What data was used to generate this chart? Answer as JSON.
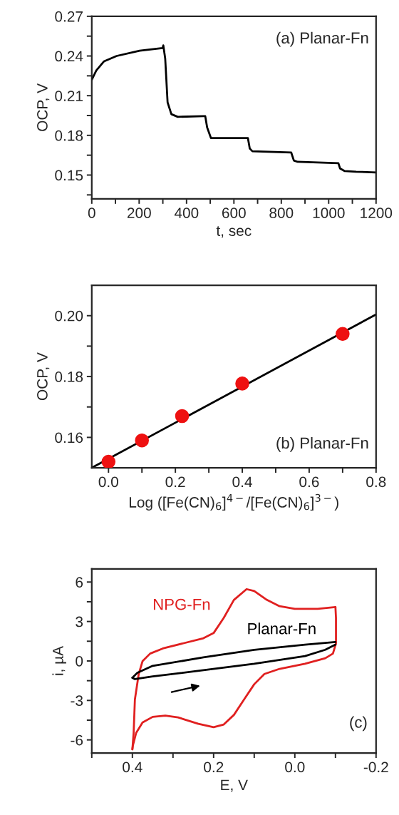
{
  "chart_data": [
    {
      "type": "line",
      "xlabel": "t, sec",
      "ylabel": "OCP, V",
      "annotations": [
        "(a) Planar-Fn"
      ],
      "xlim": [
        0,
        1200
      ],
      "ylim": [
        0.132,
        0.27
      ],
      "xticks": [
        0,
        {
          "value": 100,
          "label": null
        },
        200,
        {
          "value": 300,
          "label": null
        },
        400,
        {
          "value": 500,
          "label": null
        },
        600,
        {
          "value": 700,
          "label": null
        },
        800,
        {
          "value": 900,
          "label": null
        },
        1000,
        {
          "value": 1100,
          "label": null
        },
        1200
      ],
      "yticks": [
        {
          "value": 0.135,
          "label": null
        },
        0.15,
        {
          "value": 0.165,
          "label": null
        },
        0.18,
        {
          "value": 0.195,
          "label": null
        },
        0.21,
        {
          "value": 0.225,
          "label": null
        },
        0.24,
        {
          "value": 0.255,
          "label": null
        },
        0.27
      ],
      "series": [
        {
          "color": "#000000",
          "x": [
            0,
            19,
            52,
            105,
            202,
            299,
            302,
            310,
            320,
            336,
            363,
            471,
            479,
            487,
            503,
            546,
            659,
            667,
            678,
            842,
            853,
            869,
            1041,
            1048,
            1068,
            1116,
            1200
          ],
          "values": [
            0.222,
            0.229,
            0.236,
            0.24,
            0.244,
            0.246,
            0.248,
            0.238,
            0.205,
            0.196,
            0.194,
            0.1945,
            0.1945,
            0.186,
            0.178,
            0.178,
            0.178,
            0.17,
            0.168,
            0.167,
            0.161,
            0.16,
            0.159,
            0.155,
            0.153,
            0.1525,
            0.152
          ]
        }
      ]
    },
    {
      "type": "scatter",
      "xlabel": "Log ([Fe(CN)$_{6}$]$^{4−}$/[Fe(CN)$_{6}$]$^{3−}$)",
      "ylabel": "OCP, V",
      "annotations": [
        "(b) Planar-Fn"
      ],
      "xlim": [
        -0.05,
        0.8
      ],
      "ylim": [
        0.15,
        0.21
      ],
      "xticks": [
        {
          "value": 0.0,
          "label": "0.0"
        },
        {
          "value": 0.1,
          "label": null
        },
        0.2,
        {
          "value": 0.3,
          "label": null
        },
        0.4,
        {
          "value": 0.5,
          "label": null
        },
        0.6,
        {
          "value": 0.7,
          "label": null
        },
        0.8
      ],
      "yticks": [
        0.16,
        {
          "value": 0.17,
          "label": null
        },
        0.18,
        {
          "value": 0.19,
          "label": null
        },
        {
          "value": 0.2,
          "label": "0.20"
        }
      ],
      "series": [
        {
          "type": "line",
          "color": "#000000",
          "x": [
            -0.05,
            0.8
          ],
          "values": [
            0.15,
            0.2004
          ]
        },
        {
          "type": "scatter",
          "color": "#ee1111",
          "marker": "circle",
          "x": [
            0.0,
            0.1,
            0.22,
            0.4,
            0.7
          ],
          "values": [
            0.152,
            0.159,
            0.167,
            0.1777,
            0.194
          ]
        }
      ]
    },
    {
      "type": "line",
      "xlabel": "E, V",
      "ylabel": "i, µA",
      "annotations": [
        "(c)"
      ],
      "xlim": [
        0.5,
        -0.2
      ],
      "ylim": [
        -7,
        7
      ],
      "xticks": [
        {
          "value": 0.5,
          "label": null
        },
        0.4,
        {
          "value": 0.3,
          "label": null
        },
        0.2,
        {
          "value": 0.1,
          "label": null
        },
        {
          "value": 0.0,
          "label": "0.0"
        },
        {
          "value": -0.1,
          "label": null
        },
        -0.2
      ],
      "yticks": [
        -6,
        {
          "value": -4.5,
          "label": null
        },
        -3,
        {
          "value": -1.5,
          "label": null
        },
        0,
        {
          "value": 1.5,
          "label": null
        },
        3,
        {
          "value": 4.5,
          "label": null
        },
        6
      ],
      "series": [
        {
          "name": "NPG-Fn",
          "color": "#e02020",
          "x": [
            0.4,
            0.3969,
            0.3938,
            0.3844,
            0.375,
            0.3563,
            0.325,
            0.275,
            0.225,
            0.2,
            0.175,
            0.15,
            0.1188,
            0.1,
            0.0688,
            0.0375,
            0,
            -0.0563,
            -0.1
          ],
          "values": [
            -6.72,
            -5.46,
            -2.93,
            -0.99,
            -0.02,
            0.56,
            0.95,
            1.34,
            1.73,
            2.12,
            3.28,
            4.64,
            5.46,
            5.32,
            4.64,
            4.16,
            3.96,
            3.96,
            4.1
          ]
        },
        {
          "color": "#e02020",
          "x": [
            -0.1,
            -0.1013,
            -0.1013,
            -0.0938,
            -0.075,
            -0.025,
            0.0375,
            0.075,
            0.1,
            0.125,
            0.15,
            0.175,
            0.2,
            0.2375,
            0.2875,
            0.3188,
            0.35,
            0.375,
            0.3906,
            0.3988,
            0.4
          ],
          "values": [
            4.1,
            3.28,
            1.34,
            0.56,
            0.21,
            -0.21,
            -0.6,
            -0.99,
            -1.77,
            -2.93,
            -4.1,
            -4.83,
            -5.03,
            -4.78,
            -4.29,
            -4.16,
            -4.25,
            -4.68,
            -5.46,
            -6.43,
            -6.72
          ]
        },
        {
          "name": "Planar-Fn",
          "color": "#000000",
          "x": [
            0.4,
            0.3875,
            0.35,
            0.225,
            0.1,
            -0.025,
            -0.1
          ],
          "values": [
            -1.28,
            -0.89,
            -0.37,
            0.27,
            0.85,
            1.24,
            1.44
          ]
        },
        {
          "color": "#000000",
          "x": [
            -0.1,
            -0.075,
            -0.025,
            0.1,
            0.225,
            0.35,
            0.3938,
            0.4
          ],
          "values": [
            1.24,
            0.85,
            0.37,
            -0.21,
            -0.7,
            -1.18,
            -1.38,
            -1.28
          ]
        }
      ]
    }
  ]
}
